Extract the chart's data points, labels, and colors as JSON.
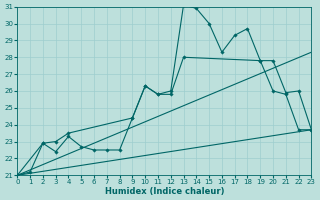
{
  "xlabel": "Humidex (Indice chaleur)",
  "xlim": [
    0,
    23
  ],
  "ylim": [
    21,
    31
  ],
  "xticks": [
    0,
    1,
    2,
    3,
    4,
    5,
    6,
    7,
    8,
    9,
    10,
    11,
    12,
    13,
    14,
    15,
    16,
    17,
    18,
    19,
    20,
    21,
    22,
    23
  ],
  "yticks": [
    21,
    22,
    23,
    24,
    25,
    26,
    27,
    28,
    29,
    30,
    31
  ],
  "bg_color": "#bde0dc",
  "line_color": "#006666",
  "grid_color": "#9ecece",
  "line1_x": [
    0,
    1,
    2,
    3,
    4,
    5,
    6,
    7,
    8,
    9,
    10,
    11,
    12,
    13,
    14,
    15,
    16,
    17,
    18,
    19,
    20,
    21,
    22,
    23
  ],
  "line1_y": [
    21.0,
    21.2,
    22.9,
    22.4,
    23.3,
    22.7,
    22.5,
    22.5,
    22.5,
    24.4,
    26.3,
    25.8,
    26.0,
    31.1,
    30.9,
    30.0,
    28.3,
    29.3,
    29.7,
    27.8,
    26.0,
    25.8,
    23.7,
    23.7
  ],
  "line2_x": [
    0,
    2,
    3,
    4,
    9,
    10,
    11,
    12,
    13,
    19,
    20,
    21,
    22,
    23
  ],
  "line2_y": [
    21.0,
    22.9,
    23.0,
    23.5,
    24.4,
    26.3,
    25.8,
    25.8,
    28.0,
    27.8,
    27.8,
    25.9,
    26.0,
    23.7
  ],
  "line3_x": [
    0,
    23
  ],
  "line3_y": [
    21.0,
    28.3
  ],
  "line4_x": [
    0,
    23
  ],
  "line4_y": [
    21.0,
    23.7
  ]
}
